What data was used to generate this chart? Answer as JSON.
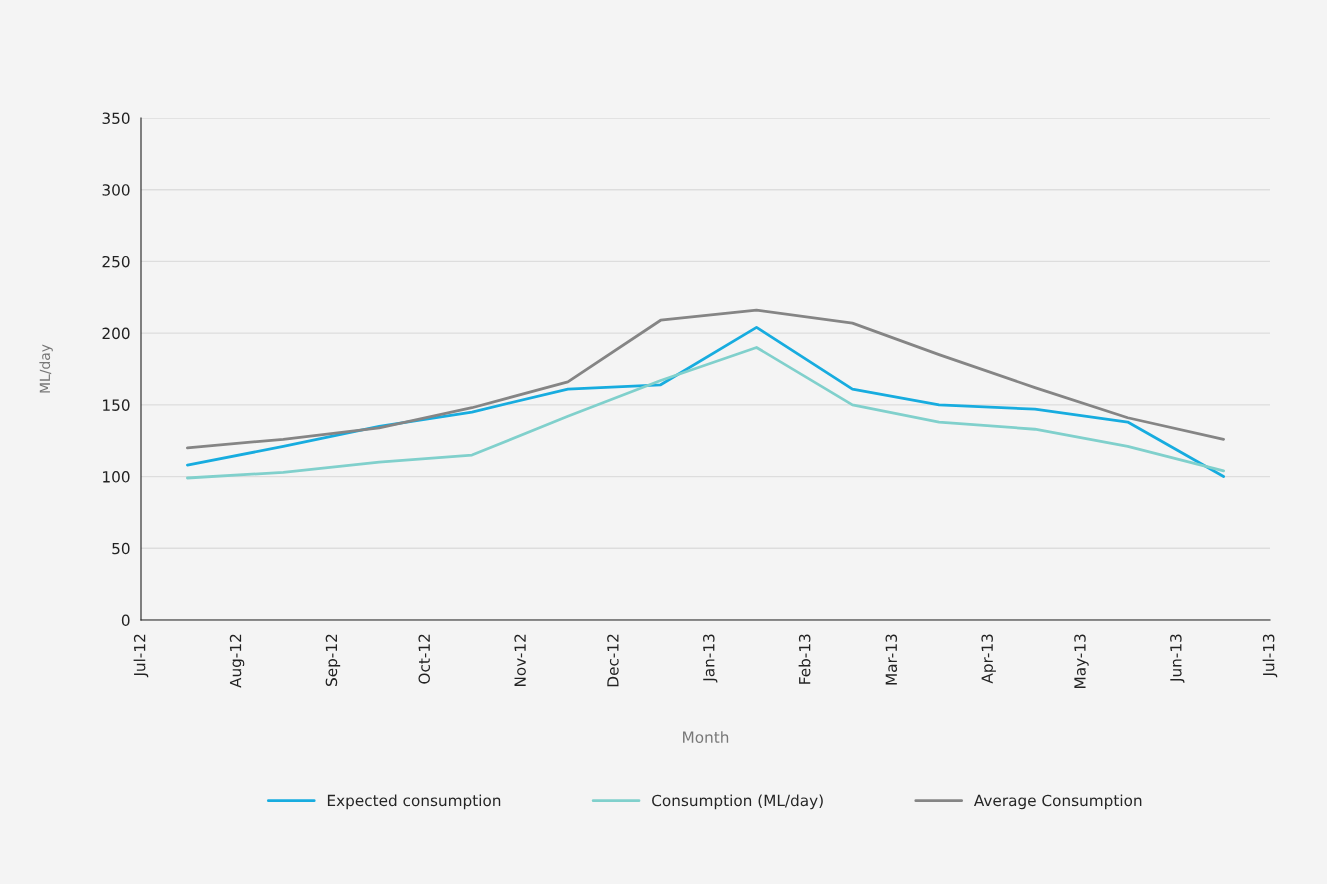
{
  "chart_data": {
    "type": "line",
    "xlabel": "Month",
    "ylabel": "ML/day",
    "x": [
      "2012-07-16",
      "2012-08-16",
      "2012-09-16",
      "2012-10-16",
      "2012-11-16",
      "2012-12-16",
      "2013-01-16",
      "2013-02-16",
      "2013-03-16",
      "2013-04-16",
      "2013-05-16",
      "2013-06-16"
    ],
    "series": [
      {
        "name": "Expected consumption",
        "color": "#17acdf",
        "values": [
          108,
          121,
          135,
          145,
          161,
          164,
          204,
          161,
          150,
          147,
          138,
          100
        ]
      },
      {
        "name": "Consumption (ML/day)",
        "color": "#80d0cc",
        "values": [
          99,
          103,
          110,
          115,
          142,
          167,
          190,
          150,
          138,
          133,
          121,
          104
        ]
      },
      {
        "name": "Average Consumption",
        "color": "#858585",
        "values": [
          120,
          126,
          134,
          148,
          166,
          209,
          216,
          207,
          185,
          162,
          141,
          126
        ]
      }
    ],
    "xlim": [
      "2012-07-01",
      "2013-07-01"
    ],
    "xticks": [
      {
        "value": "2012-07-01",
        "label": "Jul-12"
      },
      {
        "value": "2012-08-01",
        "label": "Aug-12"
      },
      {
        "value": "2012-09-01",
        "label": "Sep-12"
      },
      {
        "value": "2012-10-01",
        "label": "Oct-12"
      },
      {
        "value": "2012-11-01",
        "label": "Nov-12"
      },
      {
        "value": "2012-12-01",
        "label": "Dec-12"
      },
      {
        "value": "2013-01-01",
        "label": "Jan-13"
      },
      {
        "value": "2013-02-01",
        "label": "Feb-13"
      },
      {
        "value": "2013-03-01",
        "label": "Mar-13"
      },
      {
        "value": "2013-04-01",
        "label": "Apr-13"
      },
      {
        "value": "2013-05-01",
        "label": "May-13"
      },
      {
        "value": "2013-06-01",
        "label": "Jun-13"
      },
      {
        "value": "2013-07-01",
        "label": "Jul-13"
      }
    ],
    "ylim": [
      0,
      350
    ],
    "yticks": [
      0,
      50,
      100,
      150,
      200,
      250,
      300,
      350
    ],
    "grid": "y",
    "legend": "bottom",
    "marker": "none",
    "line_style": "solid"
  }
}
